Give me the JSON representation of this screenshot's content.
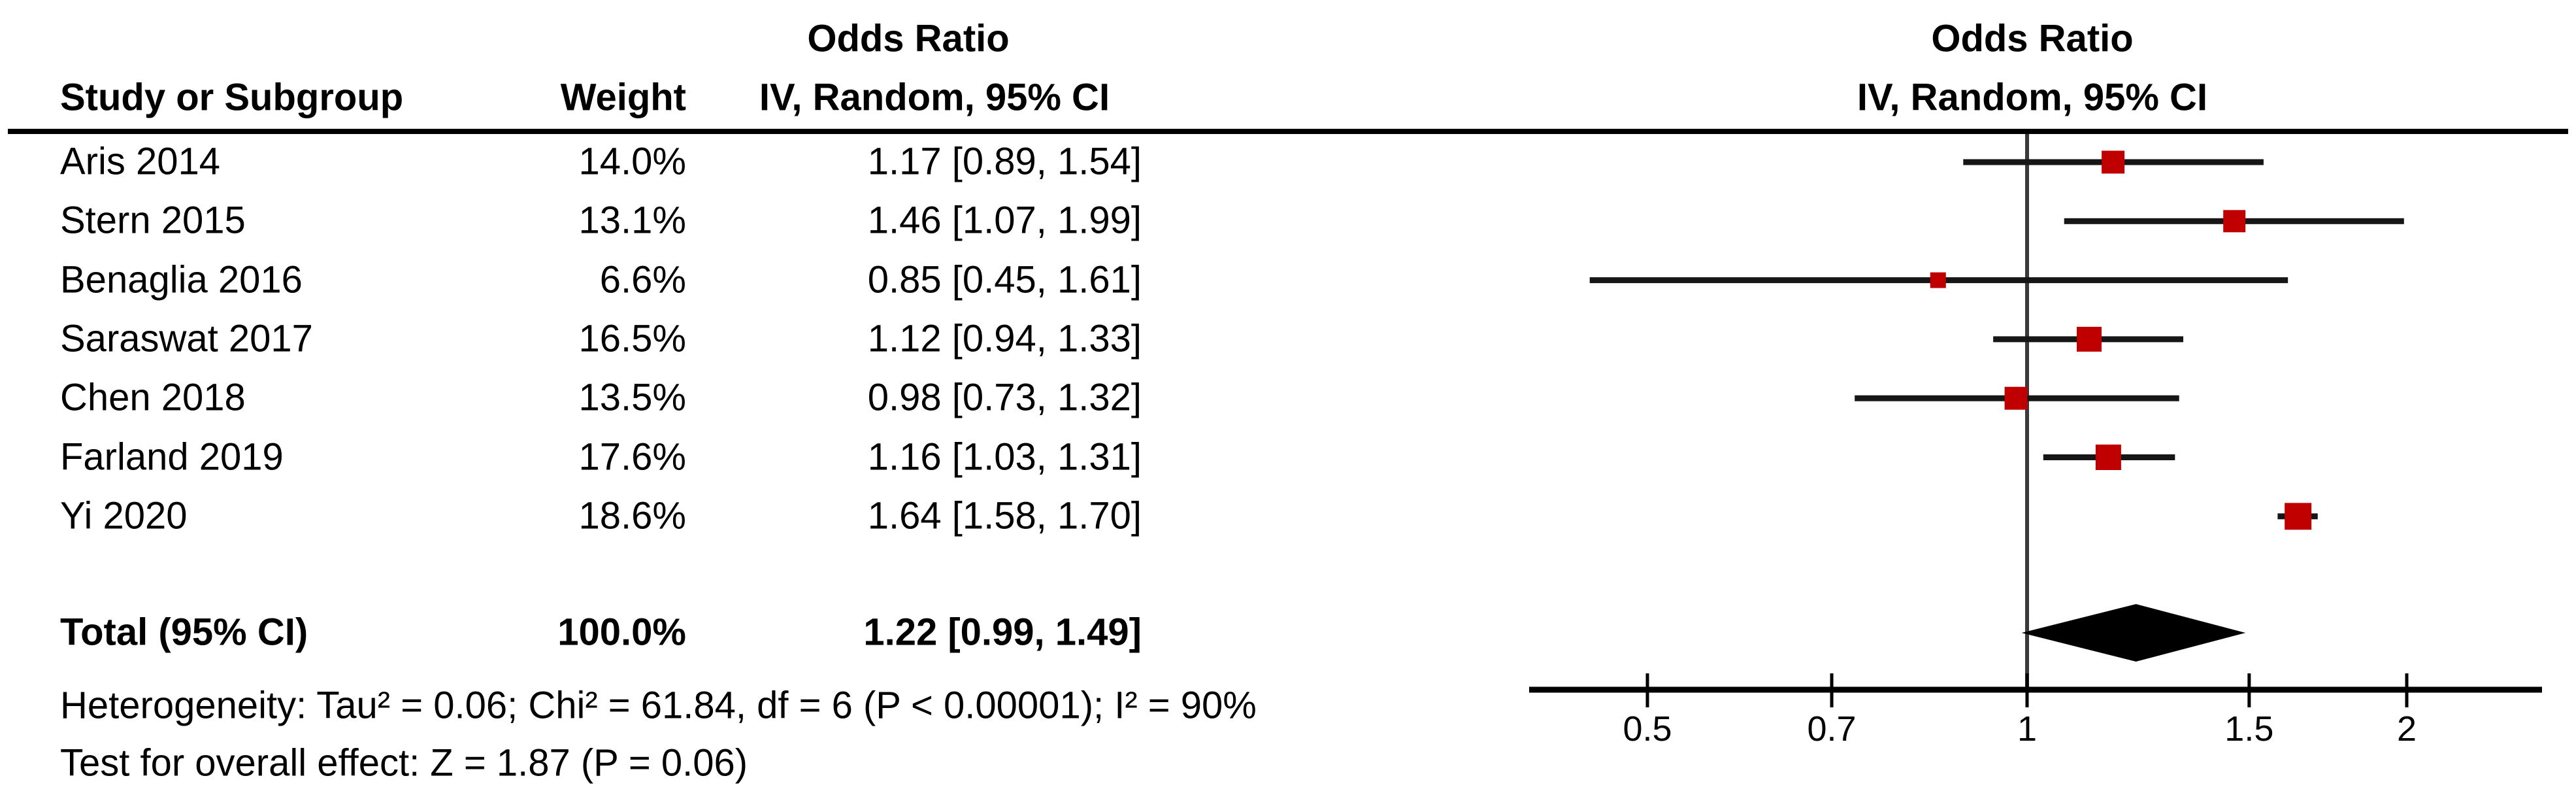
{
  "header": {
    "study_col": "Study or Subgroup",
    "weight_col": "Weight",
    "left_effect_title": "Odds Ratio",
    "left_effect_subtitle": "IV, Random, 95% CI",
    "plot_effect_title": "Odds Ratio",
    "plot_effect_subtitle": "IV, Random, 95% CI"
  },
  "chart_data": {
    "type": "forest",
    "effect_measure": "Odds Ratio",
    "model": "IV, Random, 95% CI",
    "studies": [
      {
        "name": "Aris 2014",
        "weight": "14.0%",
        "weight_pct": 14.0,
        "ci_label": "1.17 [0.89, 1.54]",
        "or": 1.17,
        "low": 0.89,
        "high": 1.54
      },
      {
        "name": "Stern 2015",
        "weight": "13.1%",
        "weight_pct": 13.1,
        "ci_label": "1.46 [1.07, 1.99]",
        "or": 1.46,
        "low": 1.07,
        "high": 1.99
      },
      {
        "name": "Benaglia 2016",
        "weight": "6.6%",
        "weight_pct": 6.6,
        "ci_label": "0.85 [0.45, 1.61]",
        "or": 0.85,
        "low": 0.45,
        "high": 1.61
      },
      {
        "name": "Saraswat 2017",
        "weight": "16.5%",
        "weight_pct": 16.5,
        "ci_label": "1.12 [0.94, 1.33]",
        "or": 1.12,
        "low": 0.94,
        "high": 1.33
      },
      {
        "name": "Chen 2018",
        "weight": "13.5%",
        "weight_pct": 13.5,
        "ci_label": "0.98 [0.73, 1.32]",
        "or": 0.98,
        "low": 0.73,
        "high": 1.32
      },
      {
        "name": "Farland 2019",
        "weight": "17.6%",
        "weight_pct": 17.6,
        "ci_label": "1.16 [1.03, 1.31]",
        "or": 1.16,
        "low": 1.03,
        "high": 1.31
      },
      {
        "name": "Yi 2020",
        "weight": "18.6%",
        "weight_pct": 18.6,
        "ci_label": "1.64 [1.58, 1.70]",
        "or": 1.64,
        "low": 1.58,
        "high": 1.7
      }
    ],
    "total": {
      "label": "Total (95% CI)",
      "weight": "100.0%",
      "ci_label": "1.22 [0.99, 1.49]",
      "or": 1.22,
      "low": 0.99,
      "high": 1.49
    },
    "axis": {
      "scale": "log",
      "ticks": [
        0.5,
        0.7,
        1,
        1.5,
        2
      ],
      "tick_labels": [
        "0.5",
        "0.7",
        "1",
        "1.5",
        "2"
      ],
      "null_value": 1,
      "line_min": 0.4,
      "line_max": 2.56
    },
    "marker_color": "#C00000",
    "line_color": "#161616",
    "diamond_color": "#000000"
  },
  "footer": {
    "heterogeneity": "Heterogeneity: Tau² = 0.06; Chi² = 61.84, df = 6 (P < 0.00001); I² = 90%",
    "overall_effect": "Test for overall effect: Z = 1.87 (P = 0.06)"
  }
}
